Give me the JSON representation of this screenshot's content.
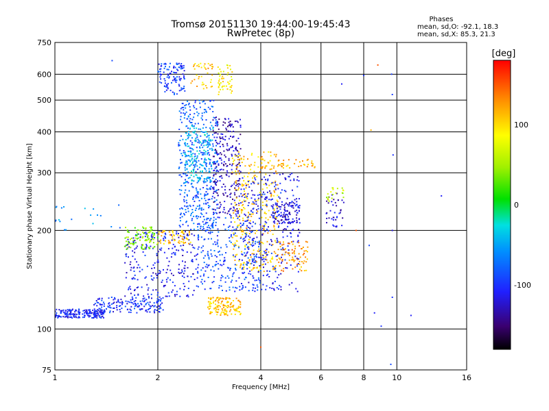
{
  "chart_data": {
    "type": "scatter",
    "title": "Tromsø 20151130 19:44:00-19:45:43",
    "subtitle": "RwPretec (8p)",
    "xlabel": "Frequency [MHz]",
    "ylabel": "Stationary phase Virtual Height [km]",
    "x_scale": "log",
    "y_scale": "log",
    "xlim": [
      1,
      16
    ],
    "ylim": [
      75,
      750
    ],
    "x_ticks": [
      1,
      2,
      4,
      6,
      8,
      10,
      16
    ],
    "y_ticks": [
      75,
      100,
      200,
      300,
      400,
      500,
      600,
      750
    ],
    "grid": true,
    "phase_stats": {
      "header": "Phases",
      "line_o": "mean, sd,O: -92.1, 18.3",
      "line_x": "mean, sd,X:  85.3, 21.3"
    },
    "colorbar": {
      "label": "[deg]",
      "range": [
        -180,
        180
      ],
      "ticks": [
        100,
        0,
        -100
      ]
    },
    "clusters": [
      {
        "x": [
          1.0,
          1.4
        ],
        "y": [
          108,
          115
        ],
        "phase": -105,
        "n": 200
      },
      {
        "x": [
          1.3,
          2.1
        ],
        "y": [
          112,
          125
        ],
        "phase": -100,
        "n": 160
      },
      {
        "x": [
          1.6,
          2.6
        ],
        "y": [
          125,
          200
        ],
        "phase": -110,
        "n": 260
      },
      {
        "x": [
          1.6,
          2.0
        ],
        "y": [
          175,
          205
        ],
        "phase": 40,
        "n": 90
      },
      {
        "x": [
          2.0,
          2.5
        ],
        "y": [
          182,
          200
        ],
        "phase": 110,
        "n": 60
      },
      {
        "x": [
          2.0,
          2.4
        ],
        "y": [
          520,
          650
        ],
        "phase": -95,
        "n": 110
      },
      {
        "x": [
          2.5,
          2.9
        ],
        "y": [
          540,
          650
        ],
        "phase": 110,
        "n": 40
      },
      {
        "x": [
          2.3,
          3.0
        ],
        "y": [
          200,
          500
        ],
        "phase": -80,
        "n": 420
      },
      {
        "x": [
          2.4,
          2.9
        ],
        "y": [
          280,
          420
        ],
        "phase": -40,
        "n": 160
      },
      {
        "x": [
          2.9,
          3.5
        ],
        "y": [
          220,
          450
        ],
        "phase": -130,
        "n": 260
      },
      {
        "x": [
          3.0,
          3.3
        ],
        "y": [
          520,
          640
        ],
        "phase": 90,
        "n": 50
      },
      {
        "x": [
          2.8,
          3.5
        ],
        "y": [
          110,
          125
        ],
        "phase": 110,
        "n": 140
      },
      {
        "x": [
          3.3,
          4.5
        ],
        "y": [
          150,
          350
        ],
        "phase": 110,
        "n": 320
      },
      {
        "x": [
          3.5,
          5.2
        ],
        "y": [
          130,
          300
        ],
        "phase": -110,
        "n": 300
      },
      {
        "x": [
          4.3,
          5.2
        ],
        "y": [
          210,
          245
        ],
        "phase": -120,
        "n": 110
      },
      {
        "x": [
          4.5,
          5.5
        ],
        "y": [
          150,
          185
        ],
        "phase": 125,
        "n": 80
      },
      {
        "x": [
          4.0,
          5.8
        ],
        "y": [
          310,
          330
        ],
        "phase": 120,
        "n": 50
      },
      {
        "x": [
          6.2,
          7.0
        ],
        "y": [
          205,
          260
        ],
        "phase": -120,
        "n": 40
      },
      {
        "x": [
          6.2,
          7.0
        ],
        "y": [
          245,
          270
        ],
        "phase": 60,
        "n": 20
      },
      {
        "x": [
          2.6,
          4.0
        ],
        "y": [
          130,
          220
        ],
        "phase": -90,
        "n": 260
      },
      {
        "x": [
          1.0,
          1.6
        ],
        "y": [
          200,
          240
        ],
        "phase": -60,
        "n": 20
      }
    ],
    "sparse_points": [
      {
        "x": 1.47,
        "y": 660,
        "phase": -90
      },
      {
        "x": 9.65,
        "y": 600,
        "phase": -95
      },
      {
        "x": 9.7,
        "y": 520,
        "phase": -95
      },
      {
        "x": 9.75,
        "y": 340,
        "phase": -100
      },
      {
        "x": 9.7,
        "y": 200,
        "phase": -120
      },
      {
        "x": 9.7,
        "y": 125,
        "phase": -100
      },
      {
        "x": 9.6,
        "y": 78,
        "phase": -90
      },
      {
        "x": 8.0,
        "y": 595,
        "phase": -100
      },
      {
        "x": 8.4,
        "y": 405,
        "phase": 120
      },
      {
        "x": 8.3,
        "y": 180,
        "phase": -90
      },
      {
        "x": 8.6,
        "y": 112,
        "phase": -110
      },
      {
        "x": 8.8,
        "y": 640,
        "phase": 150
      },
      {
        "x": 6.9,
        "y": 560,
        "phase": -110
      },
      {
        "x": 7.6,
        "y": 200,
        "phase": 150
      },
      {
        "x": 13.5,
        "y": 255,
        "phase": -110
      },
      {
        "x": 11.0,
        "y": 110,
        "phase": -110
      },
      {
        "x": 4.0,
        "y": 88,
        "phase": 150
      },
      {
        "x": 9.0,
        "y": 102,
        "phase": -100
      }
    ]
  }
}
